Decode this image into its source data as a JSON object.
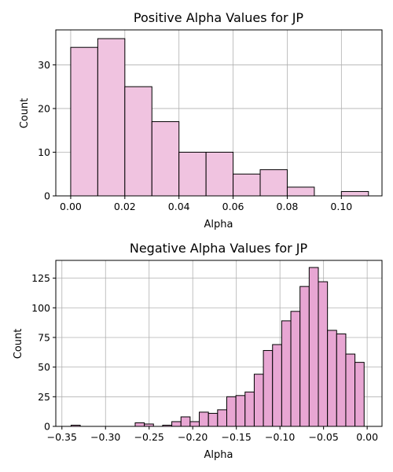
{
  "chart_data": [
    {
      "type": "bar",
      "title": "Positive Alpha Values for JP",
      "xlabel": "Alpha",
      "ylabel": "Count",
      "xlim": [
        -0.0055,
        0.115
      ],
      "ylim": [
        0,
        38
      ],
      "xticks": [
        0.0,
        0.02,
        0.04,
        0.06,
        0.08,
        0.1
      ],
      "xtick_labels": [
        "0.00",
        "0.02",
        "0.04",
        "0.06",
        "0.08",
        "0.10"
      ],
      "yticks": [
        0,
        10,
        20,
        30
      ],
      "ytick_labels": [
        "0",
        "10",
        "20",
        "30"
      ],
      "grid": true,
      "color": "#f0c3e0",
      "bins": [
        {
          "x0": 0.0,
          "x1": 0.01,
          "value": 34
        },
        {
          "x0": 0.01,
          "x1": 0.02,
          "value": 36
        },
        {
          "x0": 0.02,
          "x1": 0.03,
          "value": 25
        },
        {
          "x0": 0.03,
          "x1": 0.04,
          "value": 17
        },
        {
          "x0": 0.04,
          "x1": 0.05,
          "value": 10
        },
        {
          "x0": 0.05,
          "x1": 0.06,
          "value": 10
        },
        {
          "x0": 0.06,
          "x1": 0.07,
          "value": 5
        },
        {
          "x0": 0.07,
          "x1": 0.08,
          "value": 6
        },
        {
          "x0": 0.08,
          "x1": 0.09,
          "value": 2
        },
        {
          "x0": 0.09,
          "x1": 0.1,
          "value": 0
        },
        {
          "x0": 0.1,
          "x1": 0.11,
          "value": 1
        }
      ]
    },
    {
      "type": "bar",
      "title": "Negative Alpha Values for JP",
      "xlabel": "Alpha",
      "ylabel": "Count",
      "xlim": [
        -0.357,
        0.017
      ],
      "ylim": [
        0,
        140
      ],
      "xticks": [
        -0.35,
        -0.3,
        -0.25,
        -0.2,
        -0.15,
        -0.1,
        -0.05,
        0.0
      ],
      "xtick_labels": [
        "−0.35",
        "−0.30",
        "−0.25",
        "−0.20",
        "−0.15",
        "−0.10",
        "−0.05",
        "0.00"
      ],
      "yticks": [
        0,
        25,
        50,
        75,
        100,
        125
      ],
      "ytick_labels": [
        "0",
        "25",
        "50",
        "75",
        "100",
        "125"
      ],
      "grid": true,
      "color": "#e8a6d3",
      "bin_start": -0.3395,
      "bin_width": 0.0105,
      "values": [
        1,
        0,
        0,
        0,
        0,
        0,
        0,
        3,
        2,
        0,
        1,
        4,
        8,
        4,
        12,
        11,
        14,
        25,
        26,
        29,
        44,
        64,
        69,
        89,
        97,
        118,
        134,
        122,
        81,
        78,
        61,
        54
      ]
    }
  ]
}
